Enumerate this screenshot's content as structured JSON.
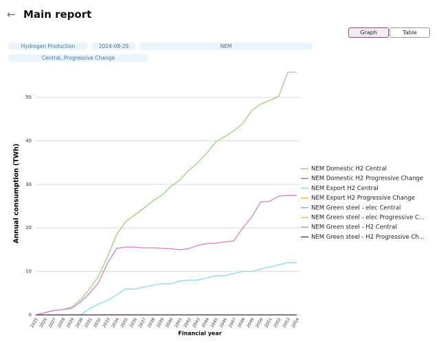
{
  "header": {
    "title": "Main report"
  },
  "buttons": [
    "Graph",
    "Table"
  ],
  "filters": [
    "Hydrogen Production",
    "2024-08-29",
    "NEM",
    "Central, Progressive Change"
  ],
  "chart_data": {
    "type": "line",
    "x_label": "Financial year",
    "y_label": "Annual consumption (TWh)",
    "categories": [
      "2025",
      "2026",
      "2027",
      "2028",
      "2029",
      "2030",
      "2031",
      "2032",
      "2033",
      "2034",
      "2035",
      "2036",
      "2037",
      "2038",
      "2039",
      "2040",
      "2041",
      "2042",
      "2043",
      "2044",
      "2045",
      "2046",
      "2047",
      "2048",
      "2049",
      "2050",
      "2051",
      "2052",
      "2053",
      "2054"
    ],
    "ylim": [
      0,
      56
    ],
    "yticks": [
      0,
      10,
      20,
      30,
      40,
      50
    ],
    "grid": true,
    "series": [
      {
        "name": "NEM Domestic H2 Central",
        "color": "#93d57a",
        "values": [
          0,
          0.5,
          1,
          1.2,
          1.8,
          3.5,
          6,
          9,
          13.5,
          18.5,
          21.5,
          23,
          24.5,
          26.2,
          27.5,
          29.5,
          31,
          33.2,
          35,
          37.2,
          39.8,
          41,
          42.3,
          44,
          47,
          48.5,
          49.3,
          50.3,
          55.8,
          55.8
        ]
      },
      {
        "name": "NEM Domestic H2 Progressive Change",
        "color": "#a678b0",
        "values": [
          0,
          0,
          0,
          0,
          0,
          0,
          0,
          0,
          0,
          0,
          0,
          0,
          0,
          0,
          0,
          0,
          0,
          0,
          0,
          0,
          0,
          0,
          0,
          0,
          0,
          0,
          0,
          0,
          0,
          0
        ]
      },
      {
        "name": "NEM Export H2 Central",
        "color": "#86dbe8",
        "values": [
          0,
          0,
          0,
          0,
          0,
          0,
          1.5,
          2.5,
          3.3,
          4.6,
          6,
          5.9,
          6.4,
          6.8,
          7.2,
          7.1,
          7.8,
          8,
          8,
          8.5,
          9,
          9,
          9.5,
          10,
          10,
          10.5,
          11,
          11.5,
          12,
          12
        ]
      },
      {
        "name": "NEM Export H2 Progressive Change",
        "color": "#e3b34a",
        "values": [
          0,
          0,
          0,
          0,
          0,
          0,
          0,
          0,
          0,
          0,
          0,
          0,
          0,
          0,
          0,
          0,
          0,
          0,
          0,
          0,
          0,
          0,
          0,
          0,
          0,
          0,
          0,
          0,
          0,
          0
        ]
      },
      {
        "name": "NEM Green steel - elec Central",
        "color": "#74c7b4",
        "values": [
          0,
          0,
          0,
          0,
          0,
          0,
          0,
          0,
          0,
          0,
          0,
          0,
          0,
          0,
          0,
          0,
          0,
          0,
          0,
          0,
          0,
          0,
          0,
          0,
          0,
          0,
          0,
          0,
          0,
          0
        ]
      },
      {
        "name": "NEM Green steel - elec Progressive C...",
        "color": "#f0c548",
        "values": [
          0,
          0,
          0,
          0,
          0,
          0,
          0,
          0,
          0,
          0,
          0,
          0,
          0,
          0,
          0,
          0,
          0,
          0,
          0,
          0,
          0,
          0,
          0,
          0,
          0,
          0,
          0,
          0,
          0,
          0
        ]
      },
      {
        "name": "NEM Green steel - H2 Central",
        "color": "#e07ac8",
        "values": [
          0,
          0.5,
          1,
          1.2,
          1.5,
          3,
          5,
          7.5,
          12,
          15.3,
          15.6,
          15.6,
          15.4,
          15.4,
          15.3,
          15.2,
          15,
          15.2,
          16,
          16.4,
          16.5,
          16.8,
          17,
          20,
          22.5,
          26,
          26.1,
          27.3,
          27.5,
          27.5
        ]
      },
      {
        "name": "NEM Green steel - H2 Progressive Ch...",
        "color": "#5b3d7c",
        "values": [
          0,
          0,
          0,
          0,
          0,
          0,
          0,
          0,
          0,
          0,
          0,
          0,
          0,
          0,
          0,
          0,
          0,
          0,
          0,
          0,
          0,
          0,
          0,
          0,
          0,
          0,
          0,
          0,
          0,
          0
        ]
      }
    ]
  }
}
